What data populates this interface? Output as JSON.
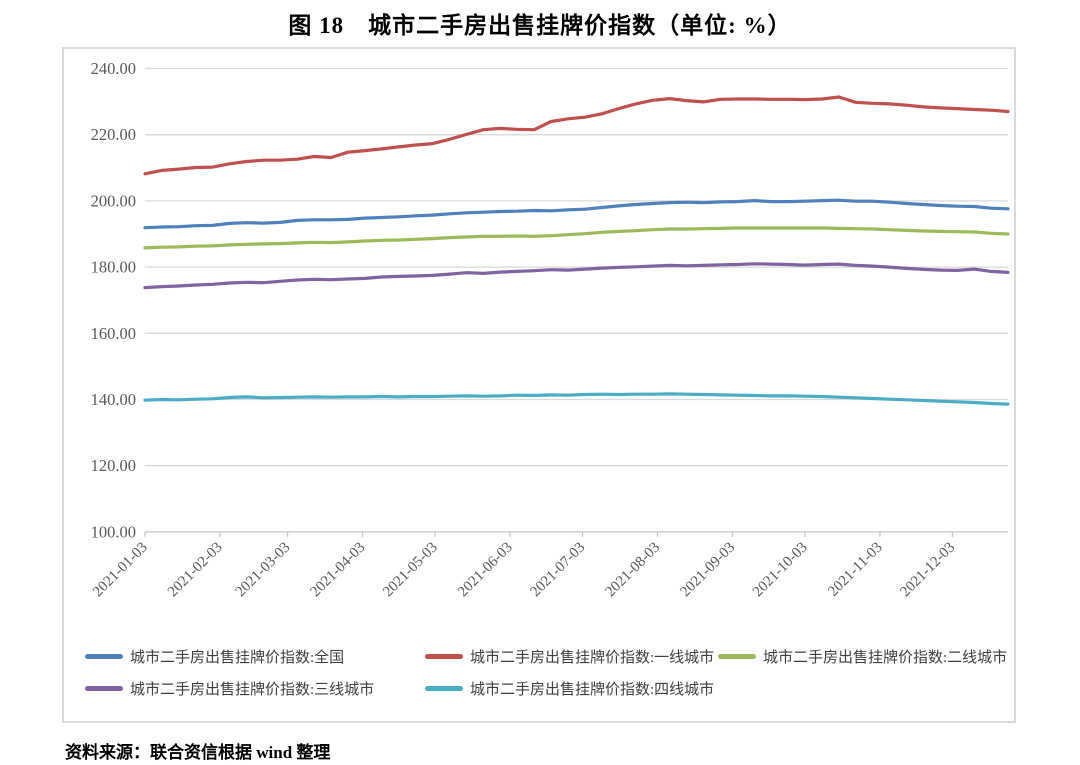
{
  "figure": {
    "title": "图 18　城市二手房出售挂牌价指数（单位: %）",
    "source": "资料来源：联合资信根据 wind 整理"
  },
  "chart_data": {
    "type": "line",
    "title": "图 18 城市二手房出售挂牌价指数（单位: %）",
    "unit": "%",
    "grid": true,
    "legend_position": "bottom",
    "ylim": [
      100,
      240
    ],
    "y_tick_labels": [
      "100.00",
      "120.00",
      "140.00",
      "160.00",
      "180.00",
      "200.00",
      "220.00",
      "240.00"
    ],
    "x_tick_labels": [
      "2021-01-03",
      "2021-02-03",
      "2021-03-03",
      "2021-04-03",
      "2021-05-03",
      "2021-06-03",
      "2021-07-03",
      "2021-08-03",
      "2021-09-03",
      "2021-10-03",
      "2021-11-03",
      "2021-12-03"
    ],
    "x": [
      "2021-01-03",
      "2021-01-10",
      "2021-01-17",
      "2021-01-24",
      "2021-01-31",
      "2021-02-07",
      "2021-02-14",
      "2021-02-21",
      "2021-02-28",
      "2021-03-07",
      "2021-03-14",
      "2021-03-21",
      "2021-03-28",
      "2021-04-04",
      "2021-04-11",
      "2021-04-18",
      "2021-04-25",
      "2021-05-02",
      "2021-05-09",
      "2021-05-16",
      "2021-05-23",
      "2021-05-30",
      "2021-06-06",
      "2021-06-13",
      "2021-06-20",
      "2021-06-27",
      "2021-07-04",
      "2021-07-11",
      "2021-07-18",
      "2021-07-25",
      "2021-08-01",
      "2021-08-08",
      "2021-08-15",
      "2021-08-22",
      "2021-08-29",
      "2021-09-05",
      "2021-09-12",
      "2021-09-19",
      "2021-09-26",
      "2021-10-03",
      "2021-10-10",
      "2021-10-17",
      "2021-10-24",
      "2021-10-31",
      "2021-11-07",
      "2021-11-14",
      "2021-11-21",
      "2021-11-28",
      "2021-12-05",
      "2021-12-12",
      "2021-12-19",
      "2021-12-26"
    ],
    "series": [
      {
        "name": "城市二手房出售挂牌价指数:全国",
        "color": "#4F81BD",
        "values": [
          191.9,
          192.1,
          192.2,
          192.5,
          192.6,
          193.2,
          193.4,
          193.3,
          193.5,
          194.1,
          194.3,
          194.3,
          194.4,
          194.8,
          195.0,
          195.2,
          195.5,
          195.7,
          196.1,
          196.4,
          196.6,
          196.8,
          196.9,
          197.1,
          197.0,
          197.3,
          197.5,
          198.0,
          198.5,
          198.9,
          199.2,
          199.5,
          199.6,
          199.5,
          199.7,
          199.8,
          200.1,
          199.8,
          199.8,
          199.9,
          200.1,
          200.2,
          199.9,
          199.9,
          199.6,
          199.2,
          198.9,
          198.6,
          198.4,
          198.3,
          197.8,
          197.6
        ]
      },
      {
        "name": "城市二手房出售挂牌价指数:一线城市",
        "color": "#C0504D",
        "values": [
          208.2,
          209.2,
          209.6,
          210.1,
          210.2,
          211.2,
          211.9,
          212.3,
          212.3,
          212.6,
          213.4,
          213.1,
          214.7,
          215.2,
          215.7,
          216.3,
          216.9,
          217.3,
          218.6,
          220.1,
          221.5,
          221.9,
          221.6,
          221.5,
          224.0,
          224.8,
          225.3,
          226.3,
          227.9,
          229.3,
          230.4,
          230.9,
          230.3,
          229.9,
          230.7,
          230.8,
          230.8,
          230.7,
          230.7,
          230.6,
          230.8,
          231.4,
          229.8,
          229.5,
          229.3,
          228.9,
          228.4,
          228.1,
          227.9,
          227.6,
          227.4,
          227.0
        ]
      },
      {
        "name": "城市二手房出售挂牌价指数:二线城市",
        "color": "#9BBB59",
        "values": [
          185.8,
          186.0,
          186.1,
          186.3,
          186.4,
          186.7,
          186.9,
          187.0,
          187.1,
          187.3,
          187.5,
          187.4,
          187.6,
          187.9,
          188.1,
          188.2,
          188.4,
          188.6,
          188.9,
          189.1,
          189.3,
          189.3,
          189.4,
          189.3,
          189.5,
          189.8,
          190.1,
          190.5,
          190.8,
          191.0,
          191.3,
          191.5,
          191.5,
          191.6,
          191.7,
          191.8,
          191.8,
          191.8,
          191.8,
          191.8,
          191.8,
          191.7,
          191.6,
          191.5,
          191.3,
          191.1,
          190.9,
          190.8,
          190.7,
          190.6,
          190.2,
          190.0
        ]
      },
      {
        "name": "城市二手房出售挂牌价指数:三线城市",
        "color": "#8064A2",
        "values": [
          173.8,
          174.1,
          174.3,
          174.6,
          174.8,
          175.2,
          175.4,
          175.3,
          175.7,
          176.1,
          176.3,
          176.2,
          176.4,
          176.6,
          177.0,
          177.2,
          177.3,
          177.5,
          177.9,
          178.3,
          178.1,
          178.5,
          178.7,
          178.9,
          179.2,
          179.1,
          179.4,
          179.7,
          179.9,
          180.1,
          180.3,
          180.5,
          180.4,
          180.5,
          180.7,
          180.8,
          181.0,
          180.9,
          180.8,
          180.6,
          180.8,
          180.9,
          180.5,
          180.3,
          180.0,
          179.6,
          179.3,
          179.1,
          179.0,
          179.4,
          178.7,
          178.4
        ]
      },
      {
        "name": "城市二手房出售挂牌价指数:四线城市",
        "color": "#4BACC6",
        "values": [
          139.8,
          140.0,
          139.9,
          140.1,
          140.2,
          140.6,
          140.8,
          140.5,
          140.6,
          140.7,
          140.8,
          140.7,
          140.8,
          140.8,
          140.9,
          140.8,
          140.9,
          140.9,
          141.0,
          141.1,
          141.0,
          141.1,
          141.3,
          141.2,
          141.4,
          141.3,
          141.5,
          141.6,
          141.5,
          141.6,
          141.6,
          141.7,
          141.6,
          141.5,
          141.4,
          141.3,
          141.2,
          141.1,
          141.1,
          141.0,
          140.9,
          140.7,
          140.5,
          140.3,
          140.1,
          139.9,
          139.7,
          139.5,
          139.3,
          139.1,
          138.8,
          138.6
        ]
      }
    ]
  }
}
